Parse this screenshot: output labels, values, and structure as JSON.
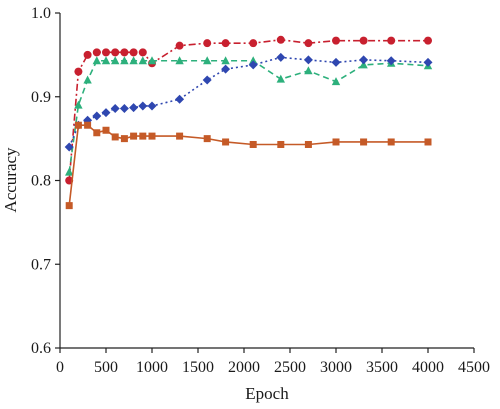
{
  "chart_data": {
    "type": "line",
    "xlabel": "Epoch",
    "ylabel": "Accuracy",
    "xlim": [
      0,
      4500
    ],
    "ylim": [
      0.6,
      1.0
    ],
    "xticks": [
      0,
      500,
      1000,
      1500,
      2000,
      2500,
      3000,
      3500,
      4000,
      4500
    ],
    "yticks": [
      0.6,
      0.7,
      0.8,
      0.9,
      1.0
    ],
    "xtick_labels": [
      "0",
      "500",
      "1000",
      "1500",
      "2000",
      "2500",
      "3000",
      "3500",
      "4000",
      "4500"
    ],
    "ytick_labels": [
      "0.6",
      "0.7",
      "0.8",
      "0.9",
      "1.0"
    ],
    "grid": false,
    "legend": "none",
    "series": [
      {
        "color": "#c8202f",
        "marker": "circle",
        "line_style": "dash-dot",
        "x": [
          100,
          200,
          300,
          400,
          500,
          600,
          700,
          800,
          900,
          1000,
          1300,
          1600,
          1800,
          2100,
          2400,
          2700,
          3000,
          3300,
          3600,
          4000
        ],
        "y": [
          0.8,
          0.93,
          0.95,
          0.953,
          0.953,
          0.953,
          0.953,
          0.953,
          0.953,
          0.94,
          0.961,
          0.964,
          0.964,
          0.964,
          0.968,
          0.964,
          0.967,
          0.967,
          0.967,
          0.967
        ]
      },
      {
        "color": "#2db07c",
        "marker": "triangle",
        "line_style": "dashed",
        "x": [
          100,
          200,
          300,
          400,
          500,
          600,
          700,
          800,
          900,
          1000,
          1300,
          1600,
          1800,
          2100,
          2400,
          2700,
          3000,
          3300,
          3600,
          4000
        ],
        "y": [
          0.81,
          0.89,
          0.92,
          0.943,
          0.943,
          0.943,
          0.943,
          0.943,
          0.943,
          0.943,
          0.943,
          0.943,
          0.943,
          0.943,
          0.921,
          0.931,
          0.918,
          0.938,
          0.94,
          0.937
        ]
      },
      {
        "color": "#2f47b0",
        "marker": "diamond",
        "line_style": "dotted",
        "x": [
          100,
          200,
          300,
          400,
          500,
          600,
          700,
          800,
          900,
          1000,
          1300,
          1600,
          1800,
          2100,
          2400,
          2700,
          3000,
          3300,
          3600,
          4000
        ],
        "y": [
          0.84,
          0.866,
          0.872,
          0.877,
          0.881,
          0.886,
          0.886,
          0.887,
          0.889,
          0.889,
          0.897,
          0.92,
          0.933,
          0.938,
          0.947,
          0.944,
          0.941,
          0.944,
          0.943,
          0.941
        ]
      },
      {
        "color": "#c55a27",
        "marker": "square",
        "line_style": "solid",
        "x": [
          100,
          200,
          300,
          400,
          500,
          600,
          700,
          800,
          900,
          1000,
          1300,
          1600,
          1800,
          2100,
          2400,
          2700,
          3000,
          3300,
          3600,
          4000
        ],
        "y": [
          0.77,
          0.866,
          0.866,
          0.857,
          0.86,
          0.852,
          0.85,
          0.853,
          0.853,
          0.853,
          0.853,
          0.85,
          0.846,
          0.843,
          0.843,
          0.843,
          0.846,
          0.846,
          0.846,
          0.846
        ]
      }
    ]
  }
}
